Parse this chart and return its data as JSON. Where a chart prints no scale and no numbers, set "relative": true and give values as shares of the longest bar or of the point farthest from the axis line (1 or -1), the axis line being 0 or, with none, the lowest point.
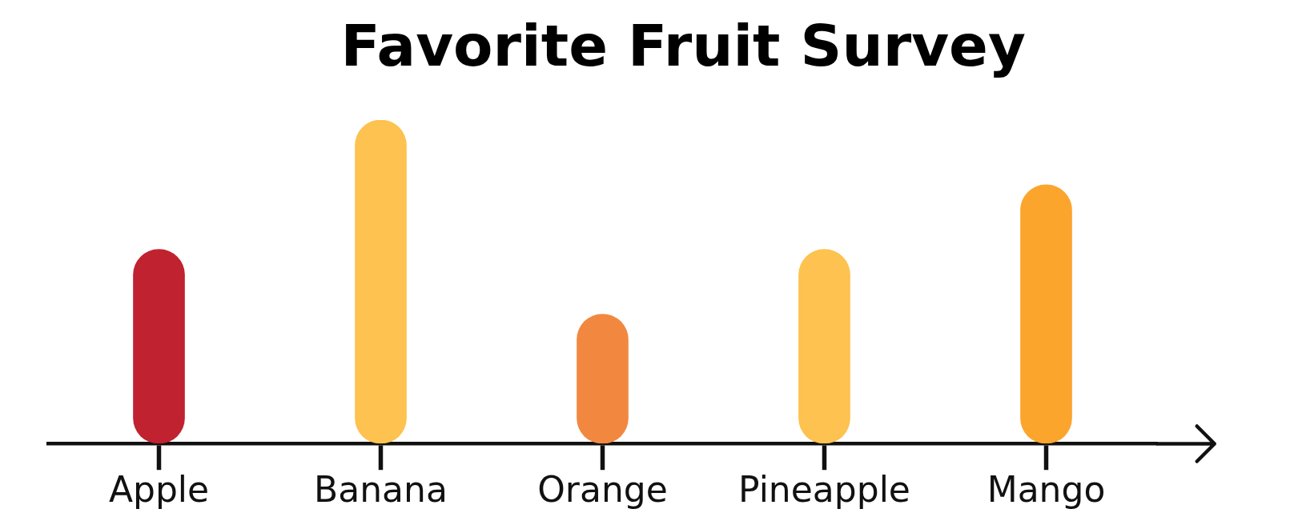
{
  "chart_data": {
    "type": "bar",
    "title": "Favorite Fruit Survey",
    "categories": [
      "Apple",
      "Banana",
      "Orange",
      "Pineapple",
      "Mango"
    ],
    "values": [
      0.6,
      1,
      0.4,
      0.6,
      0.8
    ],
    "colors": [
      "#c0222f",
      "#fdc24f",
      "#f28840",
      "#fdc24f",
      "#fca52c"
    ],
    "relative": true
  }
}
